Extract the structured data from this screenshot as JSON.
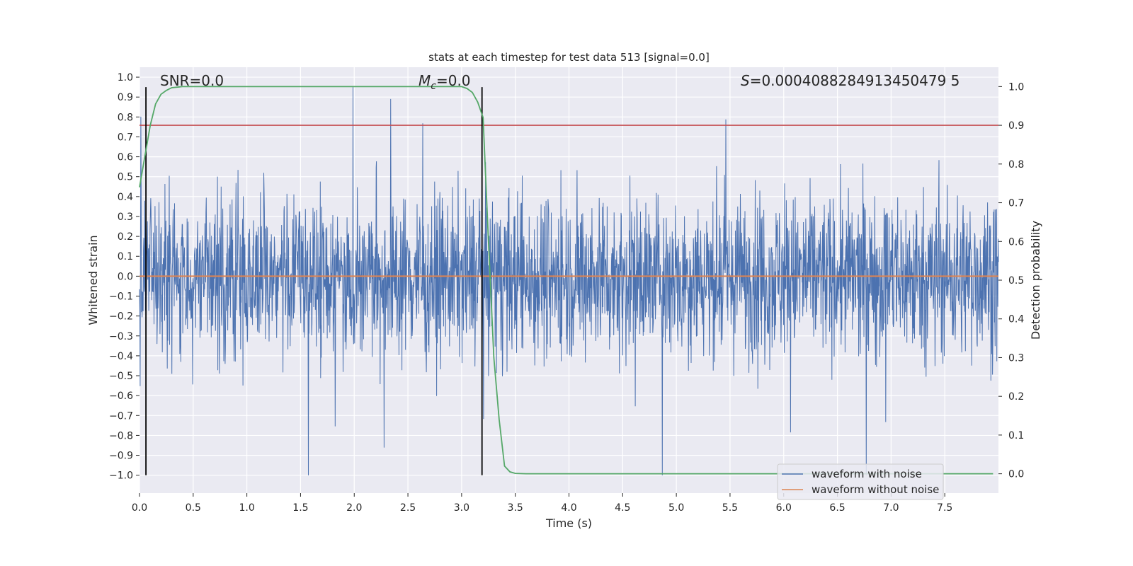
{
  "chart_data": {
    "type": "line",
    "title": "stats at each timestep for test data 513 [signal=0.0]",
    "xlabel": "Time (s)",
    "ylabel": "Whitened strain",
    "y2label": "Detection probability",
    "xlim": [
      0.0,
      8.0
    ],
    "ylim": [
      -1.09,
      1.05
    ],
    "y2lim": [
      -0.05,
      1.05
    ],
    "x_ticks": [
      "0.0",
      "0.5",
      "1.0",
      "1.5",
      "2.0",
      "2.5",
      "3.0",
      "3.5",
      "4.0",
      "4.5",
      "5.0",
      "5.5",
      "6.0",
      "6.5",
      "7.0",
      "7.5"
    ],
    "y_ticks": [
      "1.0",
      "0.9",
      "0.8",
      "0.7",
      "0.6",
      "0.5",
      "0.4",
      "0.3",
      "0.2",
      "0.1",
      "0.0",
      "-0.1",
      "-0.2",
      "-0.3",
      "-0.4",
      "-0.5",
      "-0.6",
      "-0.7",
      "-0.8",
      "-0.9",
      "-1.0"
    ],
    "y2_ticks": [
      "1.0",
      "0.9",
      "0.8",
      "0.7",
      "0.6",
      "0.5",
      "0.4",
      "0.3",
      "0.2",
      "0.1",
      "0.0"
    ],
    "annotations": {
      "snr": "SNR=0.0",
      "mc_symbol": "M",
      "mc_sub": "c",
      "mc_value": "=0.0",
      "s_symbol": "S",
      "s_value": "=0.0004088284913450479 5"
    },
    "threshold": 0.9,
    "vlines": [
      0.06,
      3.19
    ],
    "series": [
      {
        "name": "waveform with noise",
        "color": "#4c72b0",
        "kind": "noise",
        "amplitude_range": [
          -1.0,
          0.95
        ]
      },
      {
        "name": "waveform without noise",
        "color": "#dd8452",
        "kind": "constant",
        "value": 0.0
      },
      {
        "name": "detection probability",
        "color": "#55a868",
        "axis": "right",
        "x": [
          0.0,
          0.05,
          0.1,
          0.15,
          0.2,
          0.25,
          0.3,
          0.4,
          0.5,
          1.0,
          2.0,
          2.5,
          3.0,
          3.05,
          3.1,
          3.15,
          3.2,
          3.25,
          3.3,
          3.35,
          3.4,
          3.45,
          3.5,
          3.6,
          4.0,
          7.95
        ],
        "values": [
          0.74,
          0.82,
          0.9,
          0.955,
          0.98,
          0.99,
          0.997,
          1.0,
          1.0,
          1.0,
          1.0,
          1.0,
          1.0,
          0.995,
          0.985,
          0.96,
          0.92,
          0.6,
          0.3,
          0.14,
          0.02,
          0.005,
          0.001,
          0.0,
          0.0,
          0.0
        ]
      },
      {
        "name": "detection threshold",
        "color": "#c44e52",
        "axis": "right",
        "kind": "hline",
        "value": 0.9
      }
    ],
    "legend": {
      "position": "bottom-right",
      "entries": [
        {
          "label": "waveform with noise",
          "color": "#4c72b0"
        },
        {
          "label": "waveform without noise",
          "color": "#dd8452"
        }
      ]
    }
  }
}
